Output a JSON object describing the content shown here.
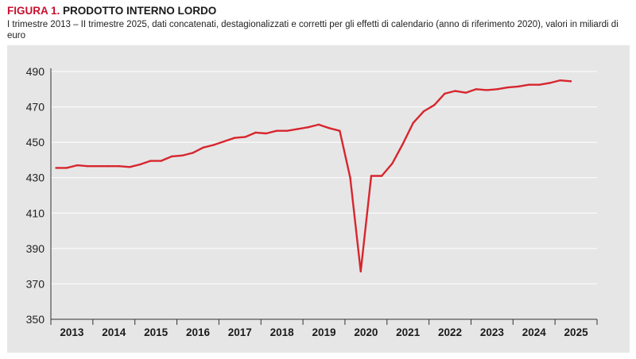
{
  "header": {
    "figure_label": "FIGURA 1.",
    "title": "PRODOTTO INTERNO LORDO",
    "subtitle": "I trimestre 2013 – II trimestre 2025, dati concatenati, destagionalizzati e corretti per gli effetti di calendario (anno di riferimento 2020), valori in miliardi di euro"
  },
  "colors": {
    "line": "#d7262e",
    "figure_label": "#c8102e",
    "plot_background": "#e6e6e6",
    "gridline": "#ffffff"
  },
  "chart_data": {
    "type": "line",
    "title": "PRODOTTO INTERNO LORDO",
    "ylim": [
      350,
      490
    ],
    "yticks": [
      350,
      370,
      390,
      410,
      430,
      450,
      470,
      490
    ],
    "grid": true,
    "legend": "none",
    "year_labels": [
      "2013",
      "2014",
      "2015",
      "2016",
      "2017",
      "2018",
      "2019",
      "2020",
      "2021",
      "2022",
      "2023",
      "2024",
      "2025"
    ],
    "quarters_per_year": 4,
    "series": [
      {
        "name": "",
        "values": [
          435.5,
          435.5,
          437.0,
          436.5,
          436.5,
          436.5,
          436.5,
          436.0,
          437.5,
          439.5,
          439.5,
          442.0,
          442.5,
          444.0,
          447.0,
          448.5,
          450.5,
          452.5,
          453.0,
          455.5,
          455.0,
          456.5,
          456.5,
          457.5,
          458.5,
          460.0,
          458.0,
          456.5,
          430.0,
          377.0,
          431.0,
          431.0,
          438.0,
          449.0,
          461.0,
          467.5,
          471.0,
          477.5,
          479.0,
          478.0,
          480.0,
          479.5,
          480.0,
          481.0,
          481.5,
          482.5,
          482.5,
          483.5,
          485.0,
          484.5
        ]
      }
    ]
  }
}
